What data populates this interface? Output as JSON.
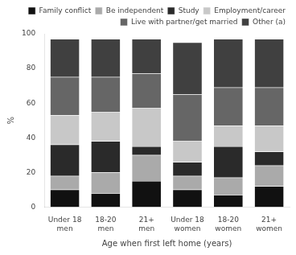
{
  "chart_data": {
    "type": "bar",
    "stacked": true,
    "xlabel": "Age when first left home (years)",
    "ylabel": "%",
    "categories": [
      "Under 18\nmen",
      "18-20\nmen",
      "21+\nmen",
      "Under 18\nwomen",
      "18-20\nwomen",
      "21+\nwomen"
    ],
    "series": [
      {
        "name": "Family conflict",
        "color": "#111111",
        "values": [
          10,
          8,
          15,
          10,
          7,
          12
        ]
      },
      {
        "name": "Be independent",
        "color": "#aaaaaa",
        "values": [
          8,
          12,
          15,
          8,
          10,
          12
        ]
      },
      {
        "name": "Study",
        "color": "#2a2a2a",
        "values": [
          18,
          18,
          5,
          8,
          18,
          8
        ]
      },
      {
        "name": "Employment/career",
        "color": "#c8c8c8",
        "values": [
          17,
          17,
          22,
          12,
          12,
          15
        ]
      },
      {
        "name": "Live with partner/get married",
        "color": "#666666",
        "values": [
          22,
          20,
          20,
          27,
          22,
          22
        ]
      },
      {
        "name": "Other (a)",
        "color": "#404040",
        "values": [
          22,
          22,
          20,
          30,
          28,
          28
        ]
      }
    ],
    "ylim": [
      0,
      100
    ],
    "yticks": [
      0,
      20,
      40,
      60,
      80,
      100
    ],
    "grid": false,
    "legend": "upper right"
  }
}
